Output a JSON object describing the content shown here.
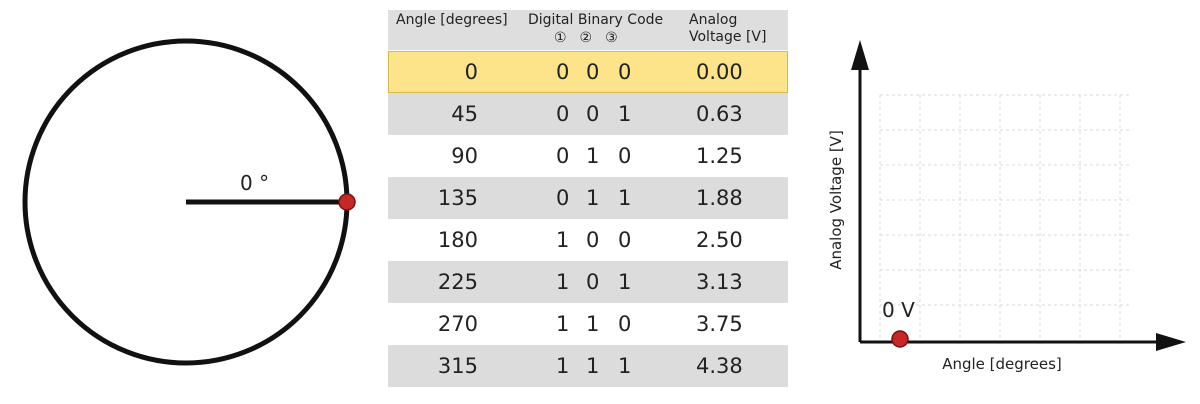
{
  "circle": {
    "angle_label": "0 °"
  },
  "table": {
    "headers": {
      "angle": "Angle [degrees]",
      "code": "Digital Binary Code",
      "bit_numbers": "①②③",
      "voltage": "Analog Voltage [V]"
    },
    "highlight_color": "#fde38a",
    "rows": [
      {
        "angle": "0",
        "bits": [
          "0",
          "0",
          "0"
        ],
        "voltage": "0.00"
      },
      {
        "angle": "45",
        "bits": [
          "0",
          "0",
          "1"
        ],
        "voltage": "0.63"
      },
      {
        "angle": "90",
        "bits": [
          "0",
          "1",
          "0"
        ],
        "voltage": "1.25"
      },
      {
        "angle": "135",
        "bits": [
          "0",
          "1",
          "1"
        ],
        "voltage": "1.88"
      },
      {
        "angle": "180",
        "bits": [
          "1",
          "0",
          "0"
        ],
        "voltage": "2.50"
      },
      {
        "angle": "225",
        "bits": [
          "1",
          "0",
          "1"
        ],
        "voltage": "3.13"
      },
      {
        "angle": "270",
        "bits": [
          "1",
          "1",
          "0"
        ],
        "voltage": "3.75"
      },
      {
        "angle": "315",
        "bits": [
          "1",
          "1",
          "1"
        ],
        "voltage": "4.38"
      }
    ]
  },
  "graph": {
    "y_label": "Analog Voltage [V]",
    "x_label": "Angle [degrees]",
    "point_label": "0 V"
  },
  "colors": {
    "marker": "#c62828",
    "row_gray": "#dcdcdc"
  }
}
